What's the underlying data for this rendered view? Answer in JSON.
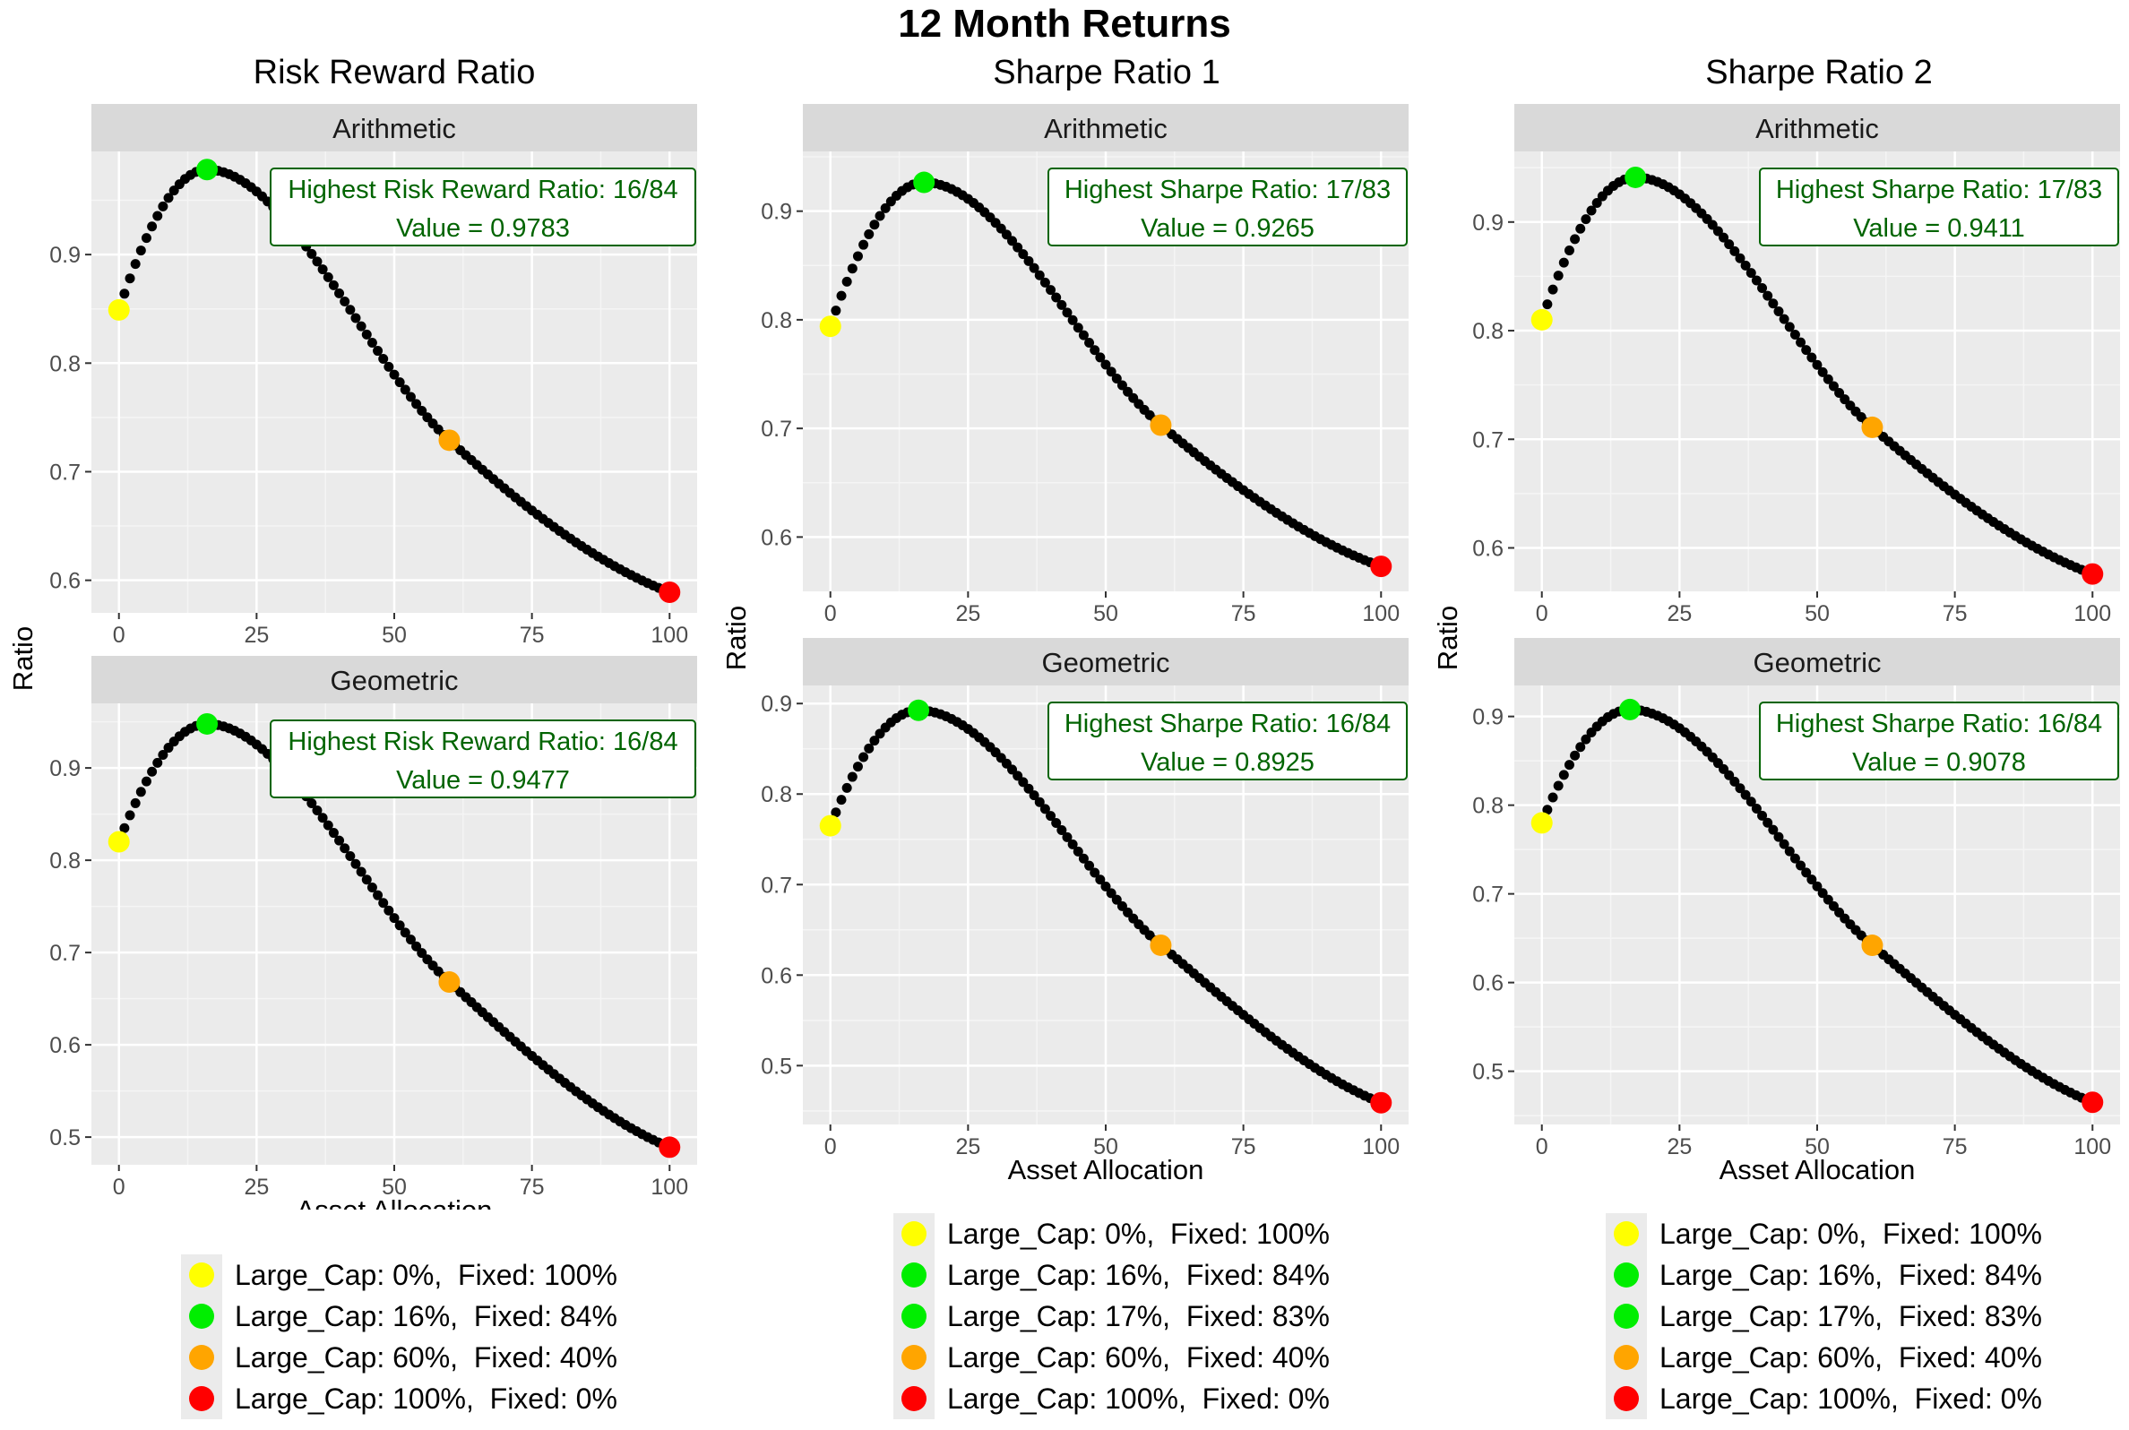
{
  "title": "12 Month Returns",
  "columns": [
    {
      "title": "Risk Reward Ratio",
      "ylabel": "Ratio",
      "xlabel": "Asset Allocation"
    },
    {
      "title": "Sharpe Ratio 1",
      "ylabel": "Ratio",
      "xlabel": "Asset Allocation"
    },
    {
      "title": "Sharpe Ratio 2",
      "ylabel": "Ratio",
      "xlabel": "Asset Allocation"
    }
  ],
  "colors": {
    "yellow": "#ffff00",
    "green": "#00ee00",
    "orange": "#ffa500",
    "red": "#ff0000",
    "curve": "#000000",
    "annotation": "#006400",
    "panel_bg": "#ebebeb",
    "strip_bg": "#d9d9d9"
  },
  "legends": [
    [
      {
        "label": "Large_Cap: 0%,  Fixed: 100%",
        "color": "#ffff00"
      },
      {
        "label": "Large_Cap: 16%,  Fixed: 84%",
        "color": "#00ee00"
      },
      {
        "label": "Large_Cap: 60%,  Fixed: 40%",
        "color": "#ffa500"
      },
      {
        "label": "Large_Cap: 100%,  Fixed: 0%",
        "color": "#ff0000"
      }
    ],
    [
      {
        "label": "Large_Cap: 0%,  Fixed: 100%",
        "color": "#ffff00"
      },
      {
        "label": "Large_Cap: 16%,  Fixed: 84%",
        "color": "#00ee00"
      },
      {
        "label": "Large_Cap: 17%,  Fixed: 83%",
        "color": "#00ee00"
      },
      {
        "label": "Large_Cap: 60%,  Fixed: 40%",
        "color": "#ffa500"
      },
      {
        "label": "Large_Cap: 100%,  Fixed: 0%",
        "color": "#ff0000"
      }
    ],
    [
      {
        "label": "Large_Cap: 0%,  Fixed: 100%",
        "color": "#ffff00"
      },
      {
        "label": "Large_Cap: 16%,  Fixed: 84%",
        "color": "#00ee00"
      },
      {
        "label": "Large_Cap: 17%,  Fixed: 83%",
        "color": "#00ee00"
      },
      {
        "label": "Large_Cap: 60%,  Fixed: 40%",
        "color": "#ffa500"
      },
      {
        "label": "Large_Cap: 100%,  Fixed: 0%",
        "color": "#ff0000"
      }
    ]
  ],
  "chart_data": [
    {
      "type": "scatter",
      "column": 0,
      "facet": "Arithmetic",
      "xlim": [
        -5,
        105
      ],
      "ylim": [
        0.57,
        0.995
      ],
      "xticks": [
        0,
        25,
        50,
        75,
        100
      ],
      "yticks": [
        0.6,
        0.7,
        0.8,
        0.9
      ],
      "peak_x": 16,
      "values": {
        "0": 0.849,
        "16": 0.9783,
        "60": 0.729,
        "100": 0.589
      },
      "highlights": [
        {
          "x": 0,
          "y": 0.849,
          "color": "#ffff00"
        },
        {
          "x": 16,
          "y": 0.9783,
          "color": "#00ee00"
        },
        {
          "x": 60,
          "y": 0.729,
          "color": "#ffa500"
        },
        {
          "x": 100,
          "y": 0.589,
          "color": "#ff0000"
        }
      ],
      "annotation": [
        "Highest Risk Reward Ratio: 16/84",
        "Value = 0.9783"
      ]
    },
    {
      "type": "scatter",
      "column": 0,
      "facet": "Geometric",
      "xlim": [
        -5,
        105
      ],
      "ylim": [
        0.47,
        0.97
      ],
      "xticks": [
        0,
        25,
        50,
        75,
        100
      ],
      "yticks": [
        0.5,
        0.6,
        0.7,
        0.8,
        0.9
      ],
      "peak_x": 16,
      "values": {
        "0": 0.82,
        "16": 0.9477,
        "60": 0.668,
        "100": 0.489
      },
      "highlights": [
        {
          "x": 0,
          "y": 0.82,
          "color": "#ffff00"
        },
        {
          "x": 16,
          "y": 0.9477,
          "color": "#00ee00"
        },
        {
          "x": 60,
          "y": 0.668,
          "color": "#ffa500"
        },
        {
          "x": 100,
          "y": 0.489,
          "color": "#ff0000"
        }
      ],
      "annotation": [
        "Highest Risk Reward Ratio: 16/84",
        "Value = 0.9477"
      ]
    },
    {
      "type": "scatter",
      "column": 1,
      "facet": "Arithmetic",
      "xlim": [
        -5,
        105
      ],
      "ylim": [
        0.55,
        0.955
      ],
      "xticks": [
        0,
        25,
        50,
        75,
        100
      ],
      "yticks": [
        0.6,
        0.7,
        0.8,
        0.9
      ],
      "peak_x": 17,
      "values": {
        "0": 0.794,
        "17": 0.9265,
        "60": 0.703,
        "100": 0.573
      },
      "highlights": [
        {
          "x": 0,
          "y": 0.794,
          "color": "#ffff00"
        },
        {
          "x": 17,
          "y": 0.9265,
          "color": "#00ee00"
        },
        {
          "x": 60,
          "y": 0.703,
          "color": "#ffa500"
        },
        {
          "x": 100,
          "y": 0.573,
          "color": "#ff0000"
        }
      ],
      "annotation": [
        "Highest Sharpe Ratio: 17/83",
        "Value = 0.9265"
      ]
    },
    {
      "type": "scatter",
      "column": 1,
      "facet": "Geometric",
      "xlim": [
        -5,
        105
      ],
      "ylim": [
        0.435,
        0.92
      ],
      "xticks": [
        0,
        25,
        50,
        75,
        100
      ],
      "yticks": [
        0.5,
        0.6,
        0.7,
        0.8,
        0.9
      ],
      "peak_x": 16,
      "values": {
        "0": 0.765,
        "16": 0.8925,
        "60": 0.633,
        "100": 0.459
      },
      "highlights": [
        {
          "x": 0,
          "y": 0.765,
          "color": "#ffff00"
        },
        {
          "x": 16,
          "y": 0.8925,
          "color": "#00ee00"
        },
        {
          "x": 60,
          "y": 0.633,
          "color": "#ffa500"
        },
        {
          "x": 100,
          "y": 0.459,
          "color": "#ff0000"
        }
      ],
      "annotation": [
        "Highest Sharpe Ratio: 16/84",
        "Value = 0.8925"
      ]
    },
    {
      "type": "scatter",
      "column": 2,
      "facet": "Arithmetic",
      "xlim": [
        -5,
        105
      ],
      "ylim": [
        0.56,
        0.965
      ],
      "xticks": [
        0,
        25,
        50,
        75,
        100
      ],
      "yticks": [
        0.6,
        0.7,
        0.8,
        0.9
      ],
      "peak_x": 17,
      "values": {
        "0": 0.81,
        "17": 0.9411,
        "60": 0.711,
        "100": 0.576
      },
      "highlights": [
        {
          "x": 0,
          "y": 0.81,
          "color": "#ffff00"
        },
        {
          "x": 17,
          "y": 0.9411,
          "color": "#00ee00"
        },
        {
          "x": 60,
          "y": 0.711,
          "color": "#ffa500"
        },
        {
          "x": 100,
          "y": 0.576,
          "color": "#ff0000"
        }
      ],
      "annotation": [
        "Highest Sharpe Ratio: 17/83",
        "Value = 0.9411"
      ]
    },
    {
      "type": "scatter",
      "column": 2,
      "facet": "Geometric",
      "xlim": [
        -5,
        105
      ],
      "ylim": [
        0.44,
        0.935
      ],
      "xticks": [
        0,
        25,
        50,
        75,
        100
      ],
      "yticks": [
        0.5,
        0.6,
        0.7,
        0.8,
        0.9
      ],
      "peak_x": 16,
      "values": {
        "0": 0.78,
        "16": 0.9078,
        "60": 0.642,
        "100": 0.465
      },
      "highlights": [
        {
          "x": 0,
          "y": 0.78,
          "color": "#ffff00"
        },
        {
          "x": 16,
          "y": 0.9078,
          "color": "#00ee00"
        },
        {
          "x": 60,
          "y": 0.642,
          "color": "#ffa500"
        },
        {
          "x": 100,
          "y": 0.465,
          "color": "#ff0000"
        }
      ],
      "annotation": [
        "Highest Sharpe Ratio: 16/84",
        "Value = 0.9078"
      ]
    }
  ]
}
